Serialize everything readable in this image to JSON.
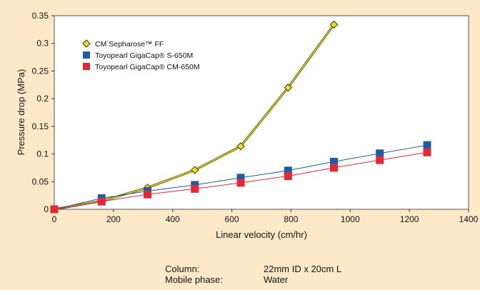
{
  "chart_data": {
    "type": "line",
    "title": "",
    "xlabel": "Linear velocity (cm/hr)",
    "ylabel": "Pressure drop (MPa)",
    "xlim": [
      0,
      1400
    ],
    "ylim": [
      0,
      0.35
    ],
    "xticks": [
      0,
      200,
      400,
      600,
      800,
      1000,
      1200,
      1400
    ],
    "yticks": [
      0,
      0.05,
      0.1,
      0.15,
      0.2,
      0.25,
      0.3,
      0.35
    ],
    "xtick_labels": [
      "0",
      "200",
      "400",
      "600",
      "800",
      "1000",
      "1200",
      "1400"
    ],
    "ytick_labels": [
      "0",
      "0.05",
      "0.1",
      "0.15",
      "0.2",
      "0.25",
      "0.3",
      "0.35"
    ],
    "grid": false,
    "legend_position": "top-left",
    "series": [
      {
        "name": "CM Sepharose™ FF",
        "marker": "diamond",
        "color": "#f2e01a",
        "line_color": "#7a6a00",
        "x": [
          0,
          160,
          315,
          475,
          630,
          790,
          945
        ],
        "y": [
          0,
          0.015,
          0.039,
          0.071,
          0.114,
          0.22,
          0.334
        ]
      },
      {
        "name": "Toyopearl GigaCap® S-650M",
        "marker": "square",
        "color": "#1f5ca8",
        "line_color": "#1f5ca8",
        "x": [
          0,
          160,
          315,
          475,
          630,
          790,
          945,
          1100,
          1260
        ],
        "y": [
          0,
          0.02,
          0.033,
          0.044,
          0.057,
          0.07,
          0.086,
          0.101,
          0.116
        ]
      },
      {
        "name": "Toyopearl GigaCap® CM-650M",
        "marker": "square",
        "color": "#e02a36",
        "line_color": "#e02a36",
        "x": [
          0,
          160,
          315,
          475,
          630,
          790,
          945,
          1100,
          1260
        ],
        "y": [
          0,
          0.014,
          0.027,
          0.037,
          0.048,
          0.06,
          0.075,
          0.089,
          0.103
        ]
      }
    ]
  },
  "conditions": [
    {
      "label": "Column:",
      "value": "22mm ID x 20cm L"
    },
    {
      "label": "Mobile phase:",
      "value": "Water"
    }
  ]
}
